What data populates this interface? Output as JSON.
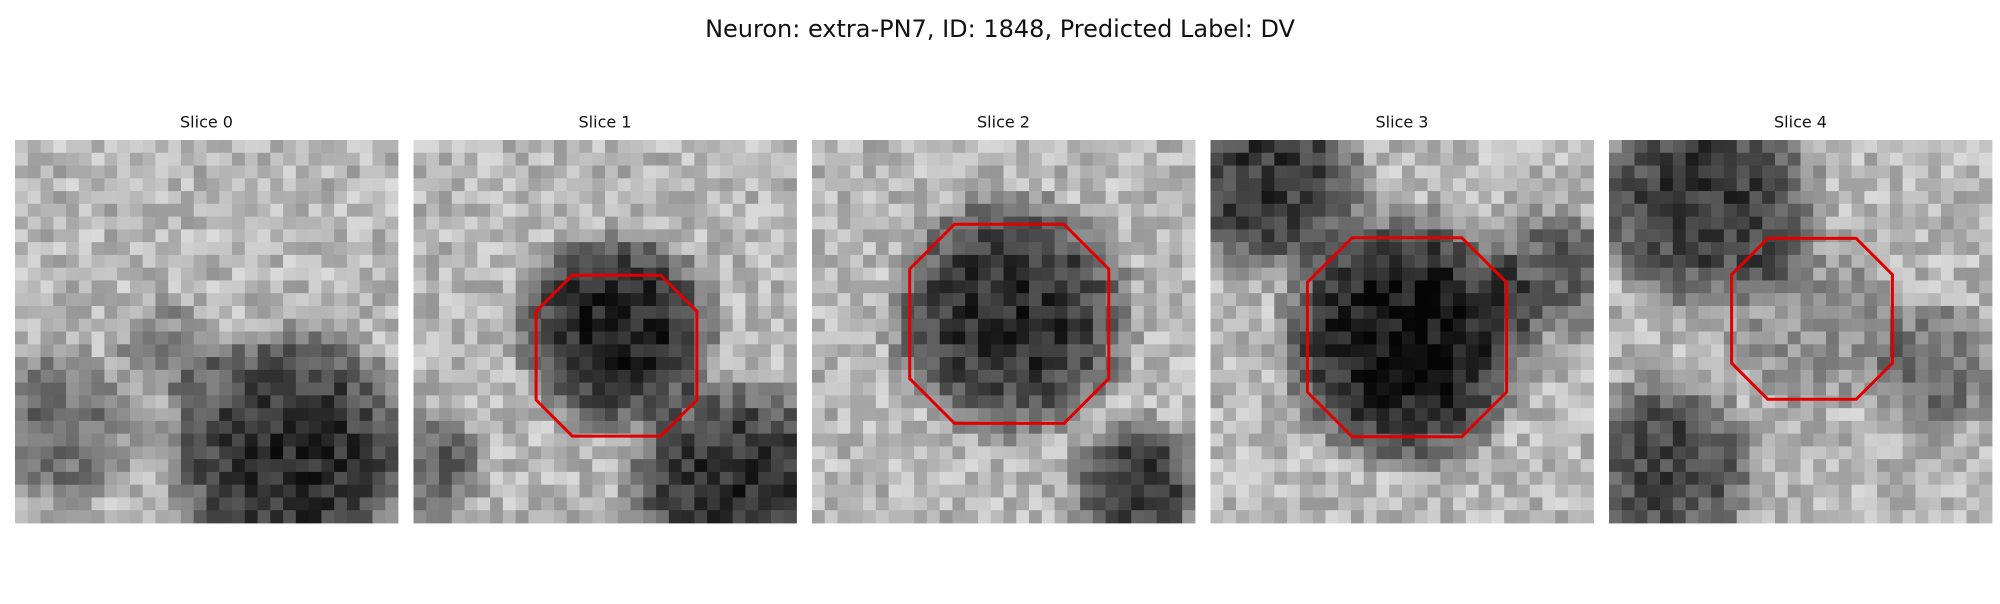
{
  "title": "Neuron: extra-PN7, ID: 1848, Predicted Label: DV",
  "panels": [
    {
      "title": "Slice 0"
    },
    {
      "title": "Slice 1"
    },
    {
      "title": "Slice 2"
    },
    {
      "title": "Slice 3"
    },
    {
      "title": "Slice 4"
    }
  ]
}
